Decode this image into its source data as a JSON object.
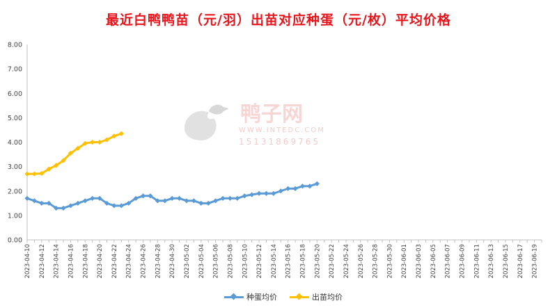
{
  "chart_data": {
    "type": "line",
    "title": "最近白鸭鸭苗（元/羽）出苗对应种蛋（元/枚）平均价格",
    "ylim": [
      0,
      8
    ],
    "yticks": [
      "0.00",
      "1.00",
      "2.00",
      "3.00",
      "4.00",
      "5.00",
      "6.00",
      "7.00",
      "8.00"
    ],
    "x_labels": [
      "2023-04-10",
      "2023-04-12",
      "2023-04-14",
      "2023-04-16",
      "2023-04-18",
      "2023-04-20",
      "2023-04-22",
      "2023-04-24",
      "2023-04-26",
      "2023-04-28",
      "2023-04-30",
      "2023-05-02",
      "2023-05-04",
      "2023-05-06",
      "2023-05-08",
      "2023-05-10",
      "2023-05-12",
      "2023-05-14",
      "2023-05-16",
      "2023-05-18",
      "2023-05-20",
      "2023-05-22",
      "2023-05-24",
      "2023-05-26",
      "2023-05-28",
      "2023-05-30",
      "2023-06-01",
      "2023-06-03",
      "2023-06-05",
      "2023-06-07",
      "2023-06-09",
      "2023-06-11",
      "2023-06-13",
      "2023-06-15",
      "2023-06-17",
      "2023-06-19"
    ],
    "x_start": "2023-04-10",
    "x_end": "2023-06-20",
    "grid": false,
    "legend_position": "bottom",
    "series": [
      {
        "name": "种蛋均价",
        "color": "#5b9bd5",
        "points": [
          [
            "2023-04-10",
            1.7
          ],
          [
            "2023-04-11",
            1.6
          ],
          [
            "2023-04-12",
            1.5
          ],
          [
            "2023-04-13",
            1.5
          ],
          [
            "2023-04-14",
            1.3
          ],
          [
            "2023-04-15",
            1.3
          ],
          [
            "2023-04-16",
            1.4
          ],
          [
            "2023-04-17",
            1.5
          ],
          [
            "2023-04-18",
            1.6
          ],
          [
            "2023-04-19",
            1.7
          ],
          [
            "2023-04-20",
            1.7
          ],
          [
            "2023-04-21",
            1.5
          ],
          [
            "2023-04-22",
            1.4
          ],
          [
            "2023-04-23",
            1.4
          ],
          [
            "2023-04-24",
            1.5
          ],
          [
            "2023-04-25",
            1.7
          ],
          [
            "2023-04-26",
            1.8
          ],
          [
            "2023-04-27",
            1.8
          ],
          [
            "2023-04-28",
            1.6
          ],
          [
            "2023-04-29",
            1.6
          ],
          [
            "2023-04-30",
            1.7
          ],
          [
            "2023-05-01",
            1.7
          ],
          [
            "2023-05-02",
            1.6
          ],
          [
            "2023-05-03",
            1.6
          ],
          [
            "2023-05-04",
            1.5
          ],
          [
            "2023-05-05",
            1.5
          ],
          [
            "2023-05-06",
            1.6
          ],
          [
            "2023-05-07",
            1.7
          ],
          [
            "2023-05-08",
            1.7
          ],
          [
            "2023-05-09",
            1.7
          ],
          [
            "2023-05-10",
            1.8
          ],
          [
            "2023-05-11",
            1.85
          ],
          [
            "2023-05-12",
            1.9
          ],
          [
            "2023-05-13",
            1.9
          ],
          [
            "2023-05-14",
            1.9
          ],
          [
            "2023-05-15",
            2.0
          ],
          [
            "2023-05-16",
            2.1
          ],
          [
            "2023-05-17",
            2.1
          ],
          [
            "2023-05-18",
            2.2
          ],
          [
            "2023-05-19",
            2.2
          ],
          [
            "2023-05-20",
            2.3
          ]
        ]
      },
      {
        "name": "出苗均价",
        "color": "#ffc000",
        "points": [
          [
            "2023-04-10",
            2.7
          ],
          [
            "2023-04-11",
            2.7
          ],
          [
            "2023-04-12",
            2.72
          ],
          [
            "2023-04-13",
            2.9
          ],
          [
            "2023-04-14",
            3.05
          ],
          [
            "2023-04-15",
            3.25
          ],
          [
            "2023-04-16",
            3.55
          ],
          [
            "2023-04-17",
            3.75
          ],
          [
            "2023-04-18",
            3.95
          ],
          [
            "2023-04-19",
            4.0
          ],
          [
            "2023-04-20",
            4.0
          ],
          [
            "2023-04-21",
            4.1
          ],
          [
            "2023-04-22",
            4.25
          ],
          [
            "2023-04-23",
            4.35
          ]
        ]
      }
    ]
  },
  "watermark": {
    "brand": "鸭子网",
    "url": "WWW.INTEDC.COM",
    "phone": "15131869765"
  }
}
